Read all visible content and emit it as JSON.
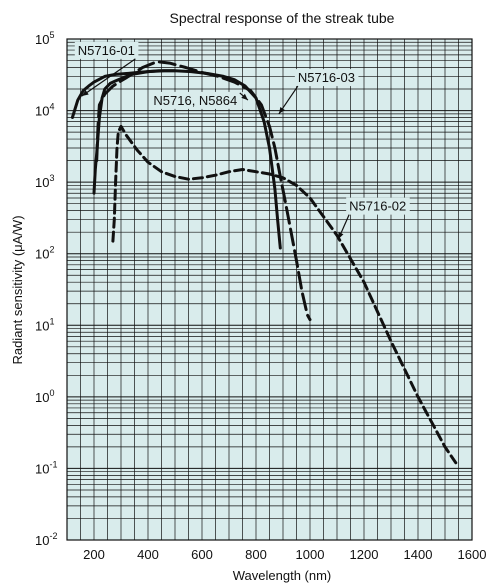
{
  "chart_data": {
    "type": "line",
    "title": "Spectral response of the streak tube",
    "xlabel": "Wavelength (nm)",
    "ylabel": "Radiant sensitivity (μA/W)",
    "x_scale": "linear",
    "y_scale": "log",
    "xlim": [
      100,
      1600
    ],
    "ylim": [
      0.01,
      100000
    ],
    "x_ticks": [
      200,
      400,
      600,
      800,
      1000,
      1200,
      1400,
      1600
    ],
    "y_ticks": [
      {
        "value": 0.01,
        "base": "10",
        "exp": "-2"
      },
      {
        "value": 0.1,
        "base": "10",
        "exp": "-1"
      },
      {
        "value": 1,
        "base": "10",
        "exp": "0"
      },
      {
        "value": 10,
        "base": "10",
        "exp": "1"
      },
      {
        "value": 100,
        "base": "10",
        "exp": "2"
      },
      {
        "value": 1000,
        "base": "10",
        "exp": "3"
      },
      {
        "value": 10000,
        "base": "10",
        "exp": "4"
      },
      {
        "value": 100000,
        "base": "10",
        "exp": "5"
      }
    ],
    "grid": true,
    "background_color": "#d9ecec",
    "line_color": "#111111",
    "series": [
      {
        "name": "N5716-01",
        "style": "solid",
        "x": [
          120,
          140,
          160,
          180,
          200,
          240,
          280,
          320,
          360,
          400,
          440,
          480,
          500
        ],
        "y": [
          8000,
          14000,
          19000,
          22000,
          25000,
          30000,
          32000,
          33000,
          34000,
          35000,
          36000,
          36000,
          36000
        ]
      },
      {
        "name": "N5716, N5864",
        "style": "solid",
        "x": [
          200,
          205,
          210,
          220,
          230,
          240,
          260,
          280,
          300,
          340,
          400,
          460,
          500,
          560,
          620,
          680,
          720,
          760,
          800,
          830,
          850,
          870,
          880,
          890
        ],
        "y": [
          700,
          1500,
          2500,
          8000,
          15000,
          20000,
          24000,
          26000,
          28000,
          32000,
          35000,
          36000,
          36000,
          35000,
          33000,
          30000,
          27000,
          22000,
          15000,
          7000,
          3000,
          800,
          300,
          120
        ]
      },
      {
        "name": "N5716-03",
        "style": "longdash",
        "x": [
          210,
          215,
          220,
          240,
          270,
          300,
          340,
          380,
          420,
          440,
          480,
          540,
          600,
          660,
          720,
          780,
          820,
          850,
          870,
          890,
          910,
          930,
          950,
          970,
          990,
          1000
        ],
        "y": [
          2000,
          6000,
          12000,
          17000,
          22000,
          26000,
          32000,
          40000,
          46000,
          48000,
          46000,
          40000,
          34000,
          30000,
          25000,
          19000,
          12000,
          6000,
          3000,
          1200,
          500,
          200,
          80,
          30,
          14,
          12
        ]
      },
      {
        "name": "N5716-02",
        "style": "dashed",
        "x": [
          270,
          275,
          280,
          285,
          290,
          300,
          320,
          360,
          400,
          450,
          500,
          550,
          600,
          650,
          700,
          750,
          800,
          850,
          900,
          950,
          1000,
          1050,
          1100,
          1200,
          1300,
          1400,
          1500,
          1540
        ],
        "y": [
          150,
          300,
          1000,
          3000,
          5000,
          6000,
          4500,
          2800,
          1900,
          1400,
          1200,
          1100,
          1150,
          1250,
          1400,
          1500,
          1400,
          1300,
          1150,
          900,
          600,
          330,
          180,
          40,
          6,
          1,
          0.2,
          0.12
        ]
      }
    ],
    "annotations": [
      {
        "text": "N5716-01",
        "series": "N5716-01",
        "at": [
          140,
          60000
        ],
        "arrow_to": [
          155,
          16000
        ]
      },
      {
        "text": "N5716-03",
        "series": "N5716-03",
        "at": [
          955,
          25000
        ],
        "arrow_to": [
          885,
          9000
        ]
      },
      {
        "text": "N5716, N5864",
        "series": "N5716, N5864",
        "at": [
          420,
          12000
        ],
        "arrow_to": [
          770,
          14000
        ]
      },
      {
        "text": "N5716-02",
        "series": "N5716-02",
        "at": [
          1145,
          400
        ],
        "arrow_to": [
          1105,
          160
        ]
      }
    ]
  }
}
